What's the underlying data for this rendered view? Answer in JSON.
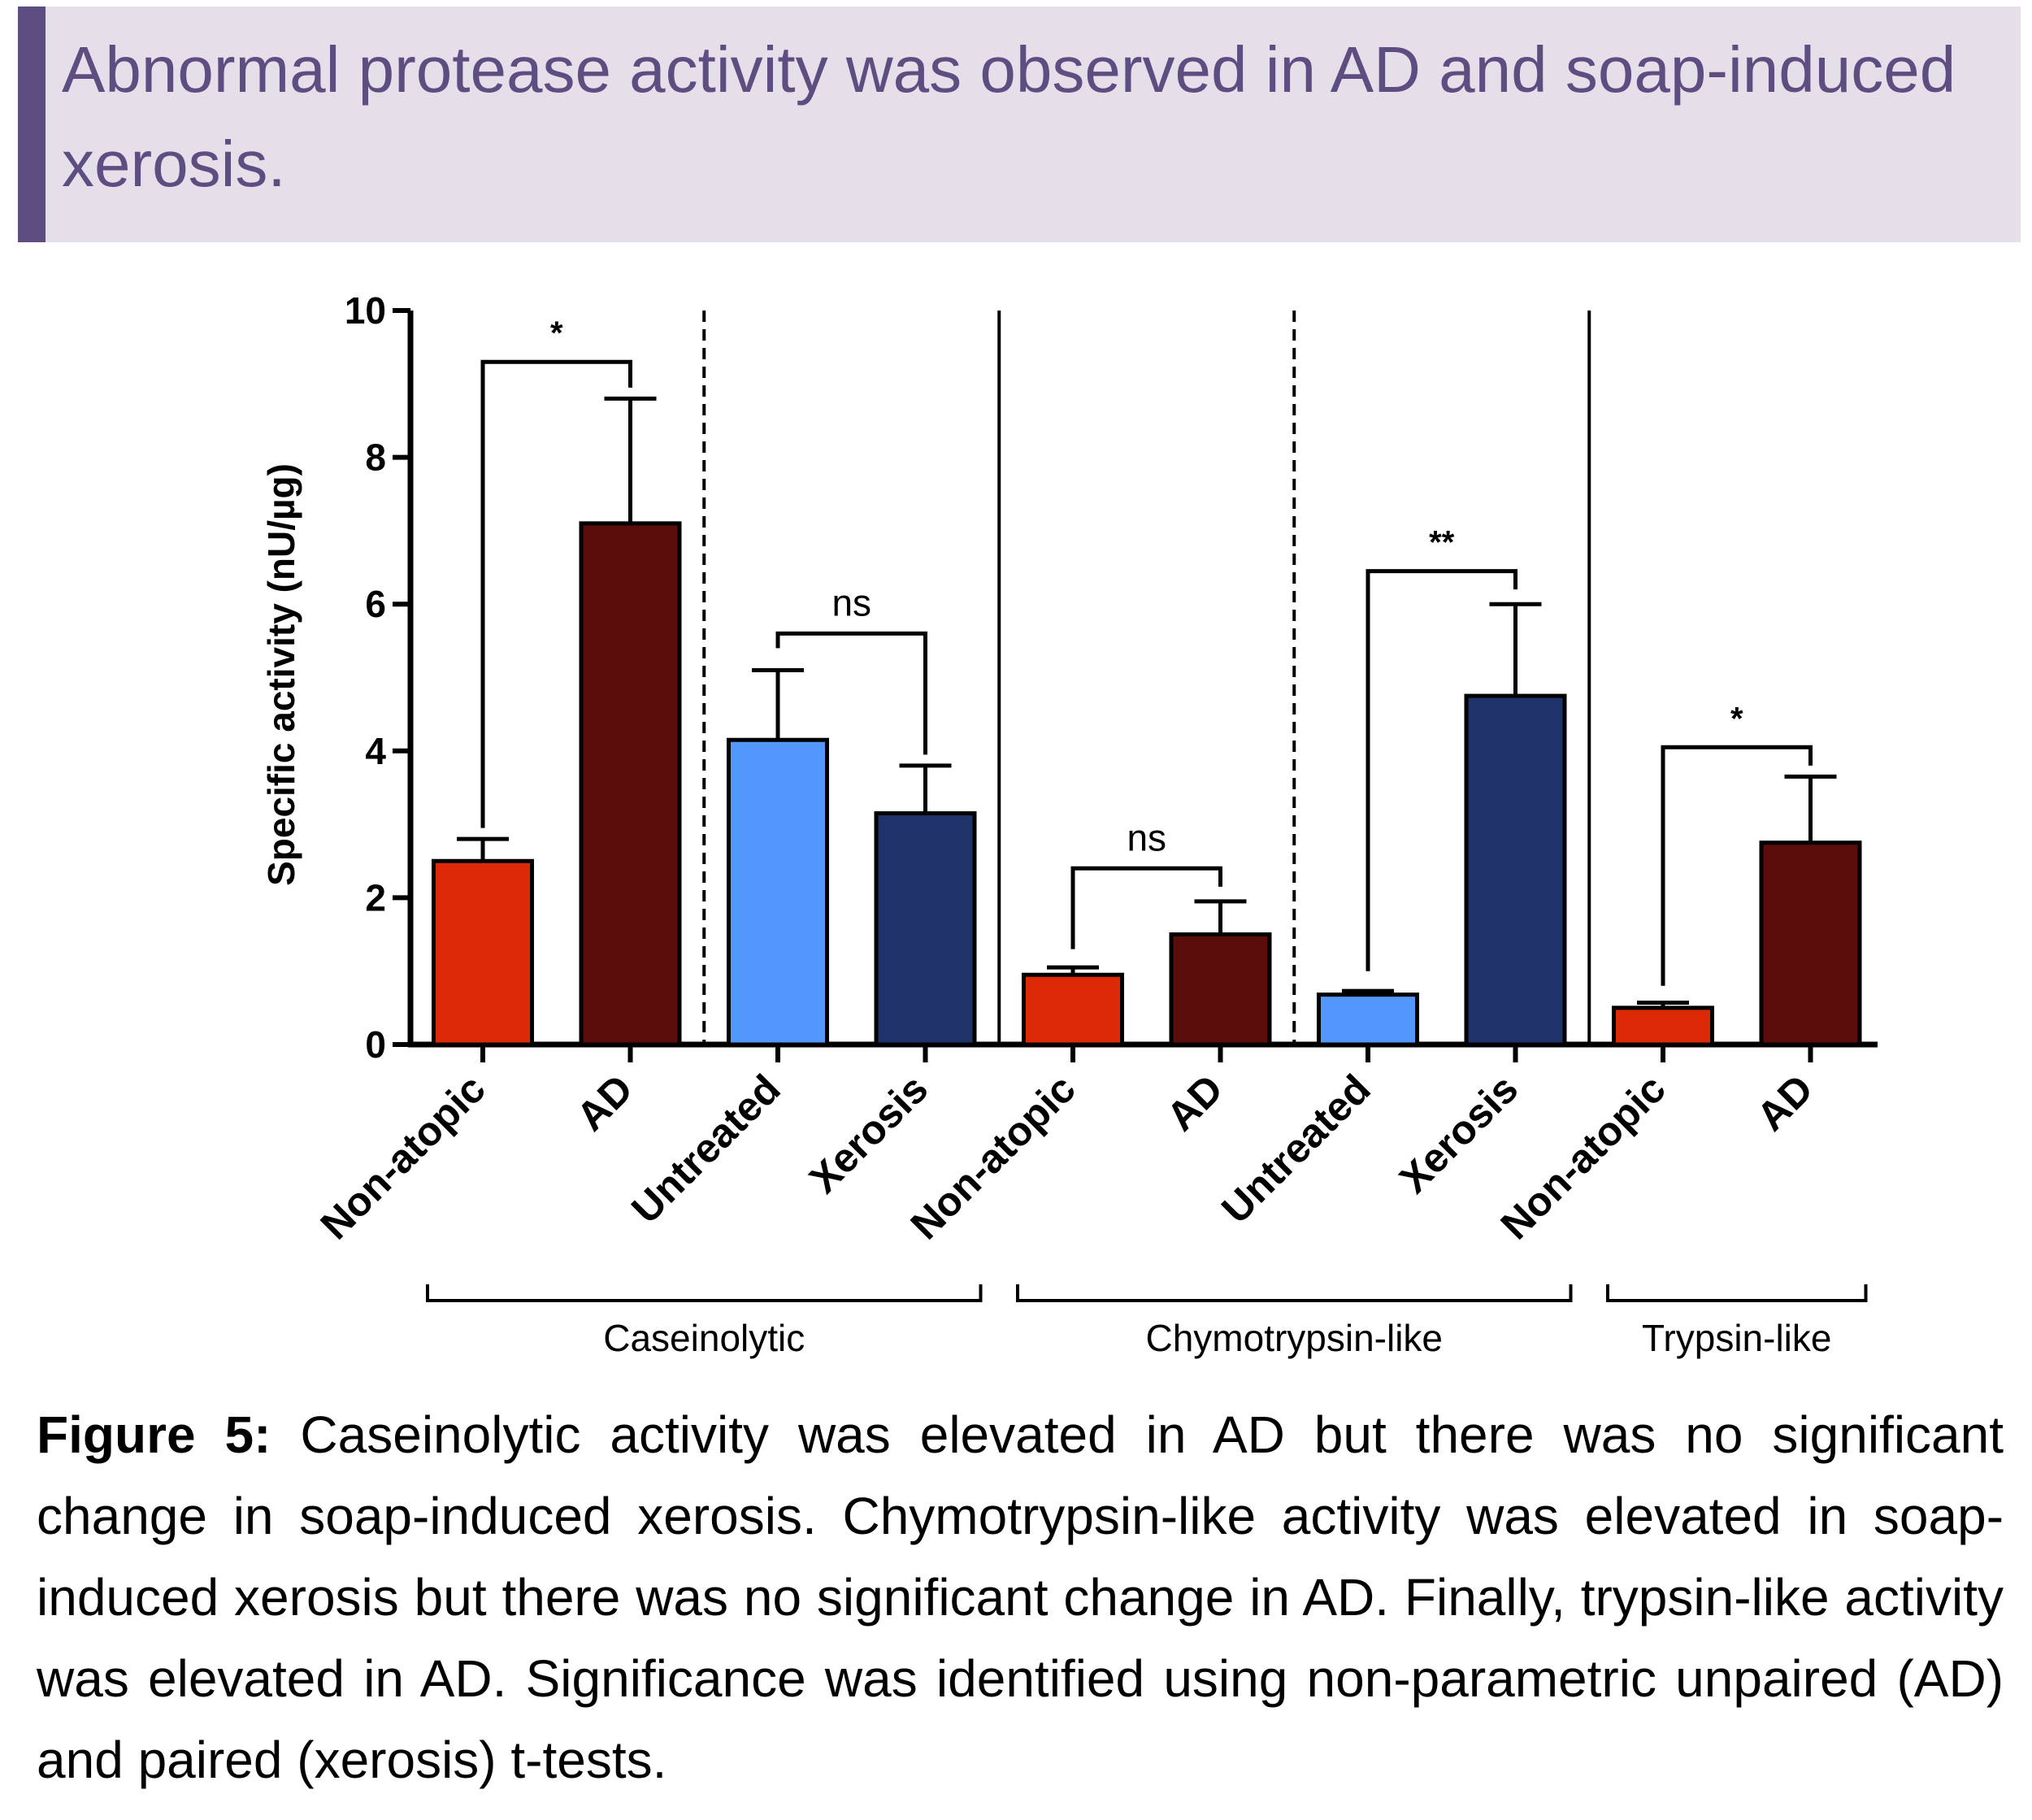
{
  "header": {
    "title": "Abnormal protease activity was observed in AD and soap-induced xerosis."
  },
  "chart_data": {
    "type": "bar",
    "ylabel": "Specific activity (nU/µg)",
    "ylim": [
      0,
      10
    ],
    "yticks": [
      0,
      2,
      4,
      6,
      8,
      10
    ],
    "bars": [
      {
        "label": "Non-atopic",
        "value": 2.5,
        "error": 0.3,
        "color": "#dd2a06"
      },
      {
        "label": "AD",
        "value": 7.1,
        "error": 1.7,
        "color": "#5a0d0a"
      },
      {
        "label": "Untreated",
        "value": 4.15,
        "error": 0.95,
        "color": "#5297fc"
      },
      {
        "label": "Xerosis",
        "value": 3.15,
        "error": 0.65,
        "color": "#1f3269"
      },
      {
        "label": "Non-atopic",
        "value": 0.95,
        "error": 0.1,
        "color": "#dd2a06"
      },
      {
        "label": "AD",
        "value": 1.5,
        "error": 0.45,
        "color": "#5a0d0a"
      },
      {
        "label": "Untreated",
        "value": 0.68,
        "error": 0.05,
        "color": "#5297fc"
      },
      {
        "label": "Xerosis",
        "value": 4.75,
        "error": 1.25,
        "color": "#1f3269"
      },
      {
        "label": "Non-atopic",
        "value": 0.5,
        "error": 0.07,
        "color": "#dd2a06"
      },
      {
        "label": "AD",
        "value": 2.75,
        "error": 0.9,
        "color": "#5a0d0a"
      }
    ],
    "groups": [
      {
        "label": "Caseinolytic"
      },
      {
        "label": "Chymotrypsin-like"
      },
      {
        "label": "Trypsin-like"
      }
    ],
    "comparisons": [
      {
        "from": 0,
        "to": 1,
        "y_left": 2.95,
        "y_right": 8.95,
        "y_top": 9.3,
        "label": "*"
      },
      {
        "from": 2,
        "to": 3,
        "y_left": 5.4,
        "y_right": 3.95,
        "y_top": 5.6,
        "label": "ns"
      },
      {
        "from": 4,
        "to": 5,
        "y_left": 1.3,
        "y_right": 2.15,
        "y_top": 2.4,
        "label": "ns"
      },
      {
        "from": 6,
        "to": 7,
        "y_left": 1.0,
        "y_right": 6.2,
        "y_top": 6.45,
        "label": "**"
      },
      {
        "from": 8,
        "to": 9,
        "y_left": 0.8,
        "y_right": 3.8,
        "y_top": 4.05,
        "label": "*"
      }
    ]
  },
  "caption": {
    "label": "Figure 5:",
    "text": "Caseinolytic activity was elevated in AD but there was no significant change in soap-induced xerosis. Chymotrypsin-like activity was elevated in soap-induced xerosis but there was no significant change in AD. Finally, trypsin-like activity was elevated in AD. Significance was identified using non-parametric unpaired (AD) and paired (xerosis) t-tests."
  }
}
